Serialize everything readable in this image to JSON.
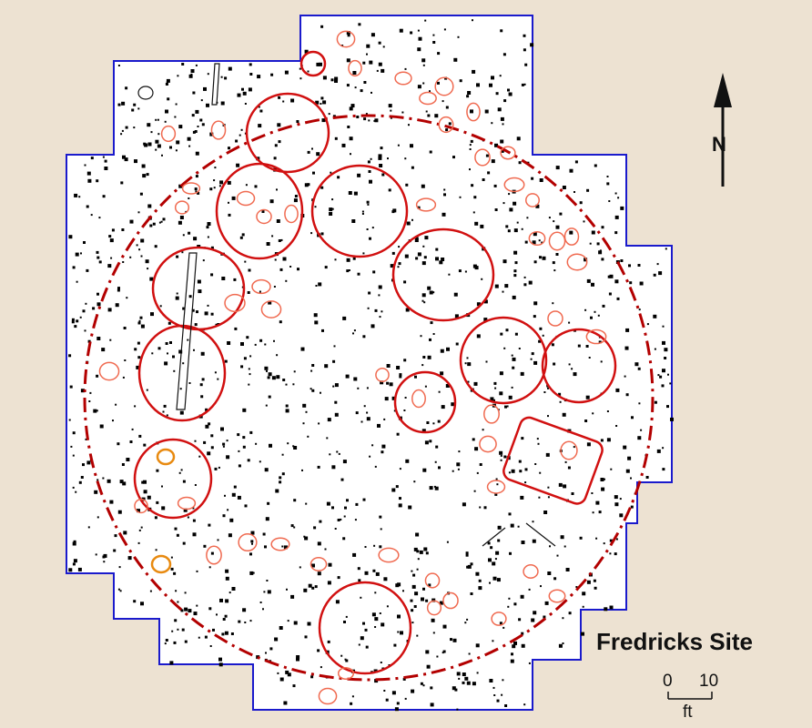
{
  "map": {
    "title": "Fredricks Site",
    "north_label": "N",
    "scale": {
      "min_label": "0",
      "max_label": "10",
      "unit_label": "ft"
    },
    "colors": {
      "background": "#EDE2D2",
      "excavation_area": "#FFFFFF",
      "excavation_outline": "#1A1ACC",
      "palisade": "#B30000",
      "structures": "#D11010",
      "pits": "#F06A50",
      "pits_highlight": "#E88A10",
      "postmolds": "#000000"
    }
  }
}
